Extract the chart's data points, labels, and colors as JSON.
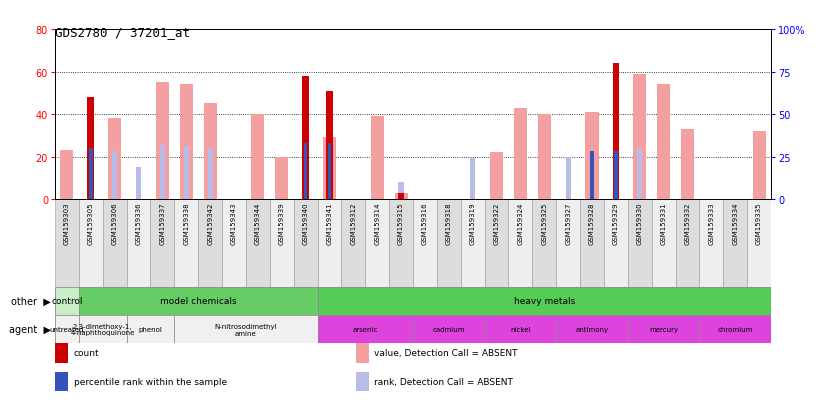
{
  "title": "GDS2780 / 37201_at",
  "samples": [
    "GSM159303",
    "GSM159305",
    "GSM159306",
    "GSM159336",
    "GSM159337",
    "GSM159338",
    "GSM159342",
    "GSM159343",
    "GSM159344",
    "GSM159339",
    "GSM159340",
    "GSM159341",
    "GSM159312",
    "GSM159314",
    "GSM159315",
    "GSM159316",
    "GSM159318",
    "GSM159319",
    "GSM159322",
    "GSM159324",
    "GSM159325",
    "GSM159327",
    "GSM159328",
    "GSM159329",
    "GSM159330",
    "GSM159331",
    "GSM159332",
    "GSM159333",
    "GSM159334",
    "GSM159335"
  ],
  "value_absent": [
    23,
    0,
    38,
    0,
    55,
    54,
    45,
    0,
    40,
    20,
    0,
    29,
    0,
    39,
    3,
    0,
    0,
    0,
    22,
    43,
    40,
    0,
    41,
    0,
    59,
    54,
    33,
    0,
    0,
    32
  ],
  "rank_absent": [
    0,
    0,
    28,
    19,
    32,
    31,
    30,
    0,
    0,
    0,
    0,
    0,
    0,
    0,
    10,
    0,
    0,
    24,
    0,
    0,
    0,
    25,
    0,
    16,
    30,
    0,
    0,
    0,
    0,
    0
  ],
  "count_red": [
    0,
    48,
    0,
    0,
    0,
    0,
    0,
    0,
    0,
    0,
    58,
    51,
    0,
    0,
    3,
    0,
    0,
    0,
    0,
    0,
    0,
    0,
    0,
    64,
    0,
    0,
    0,
    0,
    0,
    0
  ],
  "percentile_blue": [
    0,
    30,
    0,
    0,
    0,
    0,
    0,
    0,
    0,
    0,
    33,
    33,
    0,
    0,
    0,
    0,
    0,
    0,
    0,
    0,
    0,
    0,
    28,
    28,
    0,
    0,
    0,
    0,
    0,
    0
  ],
  "ylim_left": [
    0,
    80
  ],
  "ylim_right": [
    0,
    100
  ],
  "yticks_left": [
    0,
    20,
    40,
    60,
    80
  ],
  "yticks_right": [
    0,
    25,
    50,
    75,
    100
  ],
  "ytick_labels_right": [
    "0",
    "25",
    "50",
    "75",
    "100%"
  ],
  "color_value_absent": "#f4a0a0",
  "color_rank_absent": "#b8bce8",
  "color_count": "#cc0000",
  "color_percentile": "#3355bb",
  "bg_color": "#ffffff",
  "xticklabel_bg_odd": "#dddddd",
  "xticklabel_bg_even": "#eeeeee",
  "groups_other": [
    {
      "label": "control",
      "start": 0,
      "end": 1,
      "color": "#c8eec8"
    },
    {
      "label": "model chemicals",
      "start": 1,
      "end": 11,
      "color": "#66cc66"
    },
    {
      "label": "heavy metals",
      "start": 11,
      "end": 30,
      "color": "#55cc55"
    }
  ],
  "groups_agent": [
    {
      "label": "untreated",
      "start": 0,
      "end": 1,
      "color": "#f0f0f0"
    },
    {
      "label": "2,3-dimethoxy-1,\n4-naphthoquinone",
      "start": 1,
      "end": 3,
      "color": "#f0f0f0"
    },
    {
      "label": "phenol",
      "start": 3,
      "end": 5,
      "color": "#f0f0f0"
    },
    {
      "label": "N-nitrosodimethyl\namine",
      "start": 5,
      "end": 11,
      "color": "#f0f0f0"
    },
    {
      "label": "arsenic",
      "start": 11,
      "end": 15,
      "color": "#dd44dd"
    },
    {
      "label": "cadmium",
      "start": 15,
      "end": 18,
      "color": "#dd44dd"
    },
    {
      "label": "nickel",
      "start": 18,
      "end": 21,
      "color": "#dd44dd"
    },
    {
      "label": "antimony",
      "start": 21,
      "end": 24,
      "color": "#dd44dd"
    },
    {
      "label": "mercury",
      "start": 24,
      "end": 27,
      "color": "#dd44dd"
    },
    {
      "label": "chromium",
      "start": 27,
      "end": 30,
      "color": "#dd44dd"
    }
  ],
  "legend_items": [
    {
      "label": "count",
      "color": "#cc0000"
    },
    {
      "label": "percentile rank within the sample",
      "color": "#3355bb"
    },
    {
      "label": "value, Detection Call = ABSENT",
      "color": "#f4a0a0"
    },
    {
      "label": "rank, Detection Call = ABSENT",
      "color": "#b8bce8"
    }
  ],
  "bw_pink": 0.55,
  "bw_blue": 0.22,
  "bw_red": 0.28,
  "bw_pct": 0.15
}
